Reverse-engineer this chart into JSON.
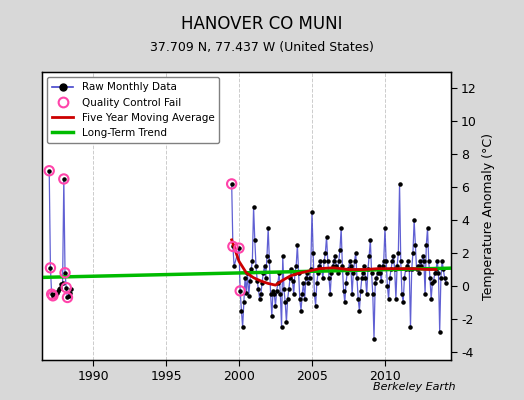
{
  "title": "HANOVER CO MUNI",
  "subtitle": "37.709 N, 77.437 W (United States)",
  "ylabel_right": "Temperature Anomaly (°C)",
  "watermark": "Berkeley Earth",
  "xlim": [
    1986.5,
    2014.5
  ],
  "ylim": [
    -4.5,
    13.0
  ],
  "yticks": [
    -4,
    -2,
    0,
    2,
    4,
    6,
    8,
    10,
    12
  ],
  "xticks": [
    1990,
    1995,
    2000,
    2005,
    2010
  ],
  "bg_color": "#d8d8d8",
  "plot_bg": "#ffffff",
  "raw_color": "#4444cc",
  "raw_dot_color": "#000000",
  "qc_color": "#ff44aa",
  "moving_avg_color": "#cc0000",
  "trend_color": "#00bb00",
  "segments": [
    [
      [
        1987.0,
        7.0
      ],
      [
        1987.083,
        1.1
      ],
      [
        1987.167,
        -0.5
      ],
      [
        1987.25,
        -0.6
      ],
      [
        1987.333,
        -0.6
      ],
      [
        1987.417,
        -0.5
      ],
      [
        1987.5,
        -0.4
      ],
      [
        1987.583,
        -0.3
      ],
      [
        1987.667,
        -0.2
      ],
      [
        1987.75,
        -0.1
      ],
      [
        1987.833,
        0.1
      ],
      [
        1987.917,
        0.2
      ],
      [
        1988.0,
        6.5
      ],
      [
        1988.083,
        0.8
      ],
      [
        1988.167,
        -0.1
      ],
      [
        1988.25,
        -0.7
      ],
      [
        1988.333,
        -0.6
      ],
      [
        1988.417,
        -0.4
      ],
      [
        1988.5,
        -0.2
      ]
    ],
    [
      [
        1999.5,
        6.2
      ],
      [
        1999.583,
        2.4
      ],
      [
        1999.667,
        1.2
      ],
      [
        2000.0,
        2.3
      ],
      [
        2000.083,
        -0.3
      ],
      [
        2000.167,
        -1.5
      ],
      [
        2000.25,
        -2.5
      ],
      [
        2000.333,
        -1.0
      ],
      [
        2000.417,
        0.5
      ],
      [
        2000.5,
        -0.4
      ],
      [
        2000.583,
        0.8
      ],
      [
        2000.667,
        -0.6
      ],
      [
        2000.75,
        0.3
      ],
      [
        2000.833,
        1.0
      ],
      [
        2000.917,
        1.5
      ],
      [
        2001.0,
        4.8
      ],
      [
        2001.083,
        2.8
      ],
      [
        2001.167,
        1.2
      ],
      [
        2001.25,
        0.3
      ],
      [
        2001.333,
        -0.2
      ],
      [
        2001.417,
        -0.8
      ],
      [
        2001.5,
        -0.5
      ],
      [
        2001.583,
        0.2
      ],
      [
        2001.667,
        0.8
      ],
      [
        2001.75,
        1.2
      ],
      [
        2001.833,
        0.5
      ],
      [
        2001.917,
        1.8
      ],
      [
        2002.0,
        3.5
      ],
      [
        2002.083,
        1.5
      ],
      [
        2002.167,
        -0.5
      ],
      [
        2002.25,
        -1.8
      ],
      [
        2002.333,
        -0.3
      ],
      [
        2002.417,
        -0.5
      ],
      [
        2002.5,
        -1.2
      ],
      [
        2002.583,
        -0.3
      ],
      [
        2002.667,
        0.2
      ],
      [
        2002.75,
        0.8
      ],
      [
        2002.833,
        -0.5
      ],
      [
        2002.917,
        -2.5
      ],
      [
        2003.0,
        1.8
      ],
      [
        2003.083,
        -0.2
      ],
      [
        2003.167,
        -1.0
      ],
      [
        2003.25,
        -2.2
      ],
      [
        2003.333,
        -0.8
      ],
      [
        2003.417,
        -0.2
      ],
      [
        2003.5,
        0.5
      ],
      [
        2003.583,
        1.0
      ],
      [
        2003.667,
        0.3
      ],
      [
        2003.75,
        -0.5
      ],
      [
        2003.833,
        0.8
      ],
      [
        2003.917,
        1.2
      ],
      [
        2004.0,
        2.5
      ],
      [
        2004.083,
        0.8
      ],
      [
        2004.167,
        -0.8
      ],
      [
        2004.25,
        -1.5
      ],
      [
        2004.333,
        -0.5
      ],
      [
        2004.417,
        0.2
      ],
      [
        2004.5,
        -0.8
      ],
      [
        2004.583,
        0.5
      ],
      [
        2004.667,
        0.8
      ],
      [
        2004.75,
        0.2
      ],
      [
        2004.833,
        0.5
      ],
      [
        2004.917,
        1.0
      ],
      [
        2005.0,
        4.5
      ],
      [
        2005.083,
        2.0
      ],
      [
        2005.167,
        -0.5
      ],
      [
        2005.25,
        -1.2
      ],
      [
        2005.333,
        0.2
      ],
      [
        2005.417,
        0.8
      ],
      [
        2005.5,
        1.2
      ],
      [
        2005.583,
        1.5
      ],
      [
        2005.667,
        1.0
      ],
      [
        2005.75,
        0.5
      ],
      [
        2005.833,
        1.5
      ],
      [
        2005.917,
        2.0
      ],
      [
        2006.0,
        3.0
      ],
      [
        2006.083,
        1.5
      ],
      [
        2006.167,
        0.5
      ],
      [
        2006.25,
        -0.5
      ],
      [
        2006.333,
        0.8
      ],
      [
        2006.417,
        1.2
      ],
      [
        2006.5,
        1.5
      ],
      [
        2006.583,
        1.8
      ],
      [
        2006.667,
        1.2
      ],
      [
        2006.75,
        0.8
      ],
      [
        2006.833,
        1.5
      ],
      [
        2006.917,
        2.2
      ],
      [
        2007.0,
        3.5
      ],
      [
        2007.083,
        1.2
      ],
      [
        2007.167,
        -0.3
      ],
      [
        2007.25,
        -1.0
      ],
      [
        2007.333,
        0.2
      ],
      [
        2007.417,
        0.8
      ],
      [
        2007.5,
        1.0
      ],
      [
        2007.583,
        1.5
      ],
      [
        2007.667,
        1.2
      ],
      [
        2007.75,
        -0.5
      ],
      [
        2007.833,
        0.8
      ],
      [
        2007.917,
        1.5
      ],
      [
        2008.0,
        2.0
      ],
      [
        2008.083,
        0.5
      ],
      [
        2008.167,
        -0.8
      ],
      [
        2008.25,
        -1.5
      ],
      [
        2008.333,
        -0.3
      ],
      [
        2008.417,
        0.5
      ],
      [
        2008.5,
        0.8
      ],
      [
        2008.583,
        1.2
      ],
      [
        2008.667,
        0.5
      ],
      [
        2008.75,
        -0.5
      ],
      [
        2008.833,
        1.0
      ],
      [
        2008.917,
        1.8
      ],
      [
        2009.0,
        2.8
      ],
      [
        2009.083,
        0.8
      ],
      [
        2009.167,
        -0.5
      ],
      [
        2009.25,
        -3.2
      ],
      [
        2009.333,
        0.2
      ],
      [
        2009.417,
        0.5
      ],
      [
        2009.5,
        0.8
      ],
      [
        2009.583,
        1.2
      ],
      [
        2009.667,
        0.8
      ],
      [
        2009.75,
        0.3
      ],
      [
        2009.833,
        1.2
      ],
      [
        2009.917,
        1.5
      ],
      [
        2010.0,
        3.5
      ],
      [
        2010.083,
        1.5
      ],
      [
        2010.167,
        0.0
      ],
      [
        2010.25,
        -0.8
      ],
      [
        2010.333,
        0.5
      ],
      [
        2010.417,
        1.0
      ],
      [
        2010.5,
        1.5
      ],
      [
        2010.583,
        1.8
      ],
      [
        2010.667,
        1.0
      ],
      [
        2010.75,
        -0.8
      ],
      [
        2010.833,
        1.2
      ],
      [
        2010.917,
        2.0
      ],
      [
        2011.0,
        6.2
      ],
      [
        2011.083,
        1.5
      ],
      [
        2011.167,
        -0.5
      ],
      [
        2011.25,
        -1.0
      ],
      [
        2011.333,
        0.5
      ],
      [
        2011.417,
        1.0
      ],
      [
        2011.5,
        1.2
      ],
      [
        2011.583,
        1.5
      ],
      [
        2011.667,
        1.0
      ],
      [
        2011.75,
        -2.5
      ],
      [
        2011.833,
        1.0
      ],
      [
        2011.917,
        2.0
      ],
      [
        2012.0,
        4.0
      ],
      [
        2012.083,
        2.5
      ],
      [
        2012.167,
        1.0
      ],
      [
        2012.25,
        1.2
      ],
      [
        2012.333,
        0.8
      ],
      [
        2012.417,
        1.5
      ],
      [
        2012.5,
        1.2
      ],
      [
        2012.583,
        1.8
      ],
      [
        2012.667,
        1.5
      ],
      [
        2012.75,
        -0.5
      ],
      [
        2012.833,
        2.5
      ],
      [
        2012.917,
        3.5
      ],
      [
        2013.0,
        1.5
      ],
      [
        2013.083,
        0.5
      ],
      [
        2013.167,
        -0.8
      ],
      [
        2013.25,
        0.2
      ],
      [
        2013.333,
        0.3
      ],
      [
        2013.417,
        0.8
      ],
      [
        2013.5,
        1.0
      ],
      [
        2013.583,
        1.5
      ],
      [
        2013.667,
        0.8
      ],
      [
        2013.75,
        -2.8
      ],
      [
        2013.833,
        0.5
      ],
      [
        2013.917,
        1.5
      ],
      [
        2014.0,
        1.0
      ],
      [
        2014.083,
        0.5
      ],
      [
        2014.167,
        0.2
      ]
    ]
  ],
  "qc_fail_points": [
    [
      1987.0,
      7.0
    ],
    [
      1987.083,
      1.1
    ],
    [
      1987.167,
      -0.5
    ],
    [
      1987.25,
      -0.6
    ],
    [
      1988.0,
      6.5
    ],
    [
      1988.083,
      0.8
    ],
    [
      1988.167,
      -0.1
    ],
    [
      1988.25,
      -0.7
    ],
    [
      1999.5,
      6.2
    ],
    [
      1999.583,
      2.4
    ],
    [
      2000.0,
      2.3
    ],
    [
      2000.083,
      -0.3
    ]
  ],
  "trend_x": [
    1986.5,
    2014.5
  ],
  "trend_y": [
    0.52,
    1.08
  ],
  "moving_avg_x": [
    1999.5,
    2000.0,
    2000.5,
    2001.0,
    2001.5,
    2002.0,
    2002.5,
    2003.0,
    2003.5,
    2004.0,
    2004.5,
    2005.0,
    2005.5,
    2006.0,
    2006.5,
    2007.0,
    2007.5,
    2008.0,
    2008.5,
    2009.0,
    2009.5,
    2010.0,
    2010.5,
    2011.0,
    2011.5,
    2012.0,
    2012.5,
    2013.0,
    2013.5
  ],
  "moving_avg_y": [
    2.8,
    1.5,
    0.8,
    0.5,
    0.3,
    0.15,
    0.05,
    0.35,
    0.6,
    0.75,
    0.85,
    0.95,
    1.05,
    1.08,
    1.1,
    1.05,
    1.0,
    1.0,
    1.0,
    1.02,
    1.05,
    1.05,
    1.05,
    1.05,
    1.05,
    1.05,
    1.02,
    1.0,
    1.0
  ]
}
